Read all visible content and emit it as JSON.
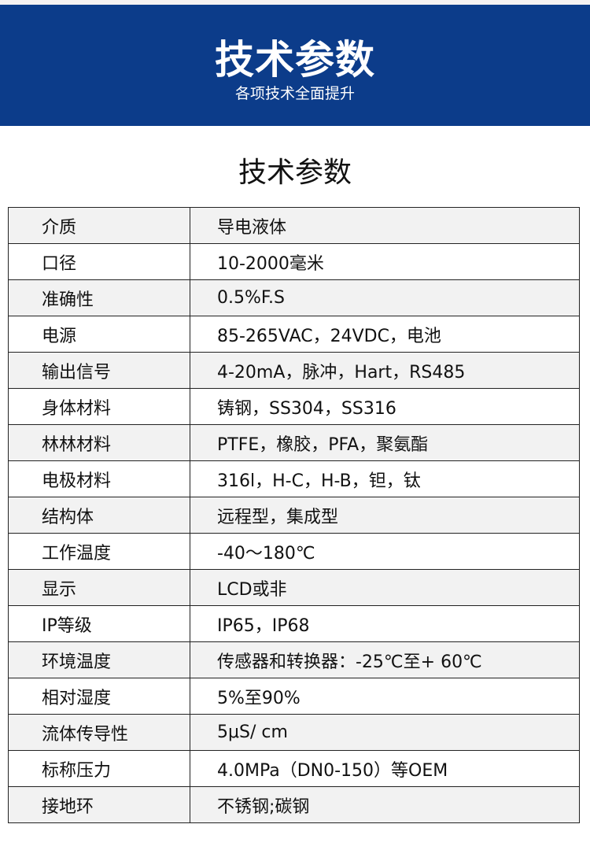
{
  "banner": {
    "title": "技术参数",
    "subtitle": "各项技术全面提升"
  },
  "heading": "技术参数",
  "colors": {
    "banner": "#0c3c8a",
    "row_alt": "#f2f2f2"
  },
  "rows": [
    {
      "k": "介质",
      "v": "导电液体"
    },
    {
      "k": "口径",
      "v": "10-2000毫米"
    },
    {
      "k": "准确性",
      "v": "0.5%F.S"
    },
    {
      "k": "电源",
      "v": "85-265VAC，24VDC，电池"
    },
    {
      "k": "输出信号",
      "v": "4-20mA，脉冲，Hart，RS485"
    },
    {
      "k": "身体材料",
      "v": "铸钢，SS304，SS316"
    },
    {
      "k": "林林材料",
      "v": "PTFE，橡胶，PFA，聚氨酯"
    },
    {
      "k": "电极材料",
      "v": "316l，H-C，H-B，钽，钛"
    },
    {
      "k": "结构体",
      "v": "远程型，集成型"
    },
    {
      "k": "工作温度",
      "v": "-40～180℃"
    },
    {
      "k": "显示",
      "v": "LCD或非"
    },
    {
      "k": "IP等级",
      "v": "IP65，IP68"
    },
    {
      "k": "环境温度",
      "v": "传感器和转换器：-25℃至+ 60℃"
    },
    {
      "k": "相对湿度",
      "v": "5%至90%"
    },
    {
      "k": "流体传导性",
      "v": "5μS/ cm"
    },
    {
      "k": "标称压力",
      "v": "4.0MPa（DN0-150）等OEM"
    },
    {
      "k": "接地环",
      "v": "不锈钢;碳钢"
    }
  ]
}
